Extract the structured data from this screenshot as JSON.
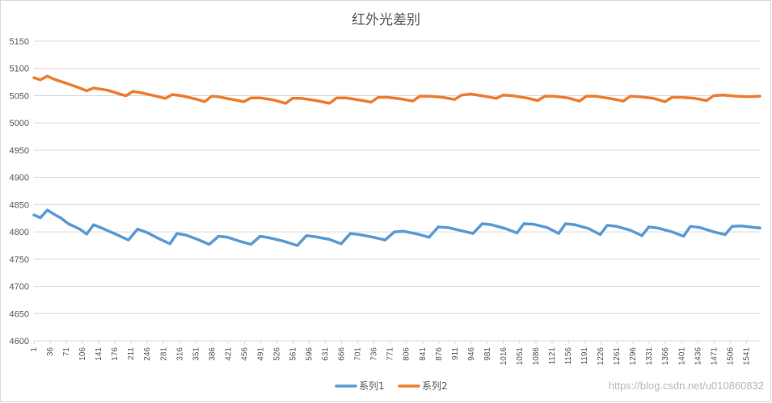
{
  "watermark": "https://blog.csdn.net/u010860832",
  "colors": {
    "series1": "#5b9bd5",
    "series2": "#ed7d31",
    "grid": "#d9d9d9",
    "text": "#595959"
  },
  "chart_data": {
    "type": "line",
    "title": "红外光差别",
    "xlabel": "",
    "ylabel": "",
    "ylim": [
      4600,
      5150
    ],
    "yticks": [
      4600,
      4650,
      4700,
      4750,
      4800,
      4850,
      4900,
      4950,
      5000,
      5050,
      5100,
      5150
    ],
    "xlim": [
      1,
      1570
    ],
    "xticks": [
      1,
      36,
      71,
      106,
      141,
      176,
      211,
      246,
      281,
      316,
      351,
      386,
      421,
      456,
      491,
      526,
      561,
      596,
      631,
      666,
      701,
      736,
      771,
      806,
      841,
      876,
      911,
      946,
      981,
      1016,
      1051,
      1086,
      1121,
      1156,
      1191,
      1226,
      1261,
      1296,
      1331,
      1366,
      1401,
      1436,
      1471,
      1506,
      1541
    ],
    "grid": true,
    "legend": "bottom",
    "series": [
      {
        "name": "系列1",
        "points": [
          [
            1,
            4831
          ],
          [
            15,
            4826
          ],
          [
            30,
            4840
          ],
          [
            45,
            4832
          ],
          [
            60,
            4825
          ],
          [
            75,
            4815
          ],
          [
            100,
            4805
          ],
          [
            115,
            4796
          ],
          [
            130,
            4813
          ],
          [
            150,
            4806
          ],
          [
            180,
            4795
          ],
          [
            205,
            4785
          ],
          [
            225,
            4805
          ],
          [
            245,
            4799
          ],
          [
            270,
            4788
          ],
          [
            295,
            4778
          ],
          [
            310,
            4797
          ],
          [
            330,
            4794
          ],
          [
            355,
            4786
          ],
          [
            380,
            4777
          ],
          [
            400,
            4792
          ],
          [
            420,
            4790
          ],
          [
            445,
            4783
          ],
          [
            470,
            4777
          ],
          [
            490,
            4792
          ],
          [
            510,
            4789
          ],
          [
            540,
            4783
          ],
          [
            570,
            4775
          ],
          [
            590,
            4793
          ],
          [
            610,
            4791
          ],
          [
            640,
            4786
          ],
          [
            665,
            4778
          ],
          [
            685,
            4797
          ],
          [
            705,
            4795
          ],
          [
            735,
            4790
          ],
          [
            760,
            4785
          ],
          [
            780,
            4800
          ],
          [
            800,
            4801
          ],
          [
            830,
            4796
          ],
          [
            855,
            4790
          ],
          [
            875,
            4809
          ],
          [
            895,
            4808
          ],
          [
            925,
            4802
          ],
          [
            950,
            4797
          ],
          [
            970,
            4815
          ],
          [
            990,
            4813
          ],
          [
            1020,
            4806
          ],
          [
            1045,
            4798
          ],
          [
            1060,
            4815
          ],
          [
            1080,
            4814
          ],
          [
            1110,
            4808
          ],
          [
            1135,
            4797
          ],
          [
            1150,
            4815
          ],
          [
            1170,
            4813
          ],
          [
            1200,
            4806
          ],
          [
            1225,
            4795
          ],
          [
            1240,
            4812
          ],
          [
            1260,
            4810
          ],
          [
            1290,
            4803
          ],
          [
            1315,
            4793
          ],
          [
            1330,
            4809
          ],
          [
            1350,
            4807
          ],
          [
            1380,
            4800
          ],
          [
            1405,
            4792
          ],
          [
            1420,
            4810
          ],
          [
            1440,
            4808
          ],
          [
            1470,
            4800
          ],
          [
            1495,
            4795
          ],
          [
            1510,
            4810
          ],
          [
            1530,
            4811
          ],
          [
            1560,
            4808
          ],
          [
            1570,
            4807
          ]
        ]
      },
      {
        "name": "系列2",
        "points": [
          [
            1,
            5083
          ],
          [
            15,
            5079
          ],
          [
            30,
            5086
          ],
          [
            45,
            5080
          ],
          [
            70,
            5073
          ],
          [
            100,
            5064
          ],
          [
            115,
            5059
          ],
          [
            130,
            5064
          ],
          [
            160,
            5060
          ],
          [
            190,
            5052
          ],
          [
            200,
            5050
          ],
          [
            215,
            5058
          ],
          [
            235,
            5055
          ],
          [
            265,
            5049
          ],
          [
            285,
            5045
          ],
          [
            300,
            5052
          ],
          [
            320,
            5050
          ],
          [
            350,
            5044
          ],
          [
            370,
            5039
          ],
          [
            385,
            5049
          ],
          [
            400,
            5048
          ],
          [
            430,
            5043
          ],
          [
            455,
            5039
          ],
          [
            470,
            5046
          ],
          [
            490,
            5046
          ],
          [
            520,
            5042
          ],
          [
            545,
            5036
          ],
          [
            560,
            5045
          ],
          [
            580,
            5045
          ],
          [
            610,
            5041
          ],
          [
            640,
            5036
          ],
          [
            655,
            5046
          ],
          [
            675,
            5046
          ],
          [
            705,
            5042
          ],
          [
            730,
            5038
          ],
          [
            745,
            5047
          ],
          [
            765,
            5047
          ],
          [
            795,
            5044
          ],
          [
            820,
            5040
          ],
          [
            835,
            5049
          ],
          [
            855,
            5049
          ],
          [
            885,
            5047
          ],
          [
            910,
            5043
          ],
          [
            925,
            5051
          ],
          [
            945,
            5053
          ],
          [
            975,
            5049
          ],
          [
            1000,
            5045
          ],
          [
            1015,
            5051
          ],
          [
            1035,
            5050
          ],
          [
            1065,
            5046
          ],
          [
            1090,
            5041
          ],
          [
            1105,
            5049
          ],
          [
            1125,
            5049
          ],
          [
            1155,
            5046
          ],
          [
            1180,
            5040
          ],
          [
            1195,
            5049
          ],
          [
            1215,
            5049
          ],
          [
            1245,
            5045
          ],
          [
            1275,
            5040
          ],
          [
            1290,
            5049
          ],
          [
            1310,
            5048
          ],
          [
            1340,
            5045
          ],
          [
            1365,
            5039
          ],
          [
            1380,
            5047
          ],
          [
            1400,
            5047
          ],
          [
            1430,
            5045
          ],
          [
            1455,
            5041
          ],
          [
            1470,
            5050
          ],
          [
            1490,
            5051
          ],
          [
            1520,
            5049
          ],
          [
            1545,
            5048
          ],
          [
            1570,
            5049
          ]
        ]
      }
    ]
  }
}
